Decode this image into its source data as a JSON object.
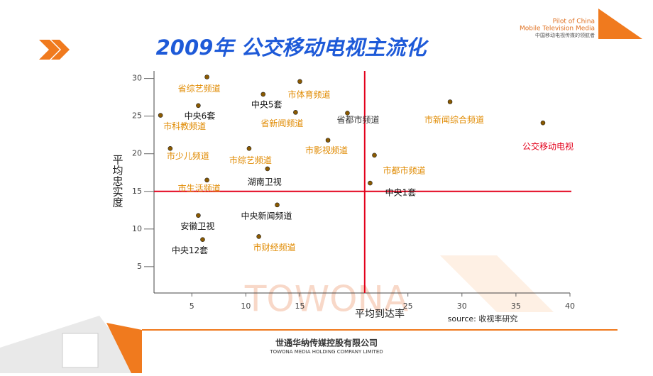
{
  "header": {
    "logo_line1": "Pilot of China",
    "logo_line2": "Mobile Television Media",
    "logo_line3": "中国移动电视传媒的领航者"
  },
  "footer": {
    "company_cn": "世通华纳传媒控股有限公司",
    "company_en": "TOWONA MEDIA HOLDING COMPANY LIMITED",
    "watermark": "TOWONA"
  },
  "chart_data": {
    "type": "scatter",
    "title": "2009年  公交移动电视主流化",
    "x_label": "平均到达率",
    "y_label": "平均忠实度",
    "source": "source:  收视率研究",
    "xlim": [
      1.5,
      40
    ],
    "ylim": [
      1.5,
      31
    ],
    "xticks": [
      5,
      10,
      15,
      25,
      30,
      35,
      40
    ],
    "yticks": [
      5,
      10,
      15,
      20,
      25,
      30
    ],
    "crosshair": {
      "x": 21,
      "y": 15,
      "color": "#e3001b"
    },
    "point_color": "#8b5a00",
    "points": [
      {
        "label": "省综艺频道",
        "x": 6.4,
        "y": 30.2,
        "color": "#e08a00"
      },
      {
        "label": "市体育频道",
        "x": 15.0,
        "y": 29.6,
        "color": "#e08a00"
      },
      {
        "label": "中央5套",
        "x": 11.6,
        "y": 27.9,
        "color": "#111111"
      },
      {
        "label": "中央6套",
        "x": 5.6,
        "y": 26.4,
        "color": "#111111"
      },
      {
        "label": "市科教频道",
        "x": 2.1,
        "y": 25.1,
        "color": "#e08a00"
      },
      {
        "label": "省新闻频道",
        "x": 14.6,
        "y": 25.5,
        "color": "#e08a00"
      },
      {
        "label": "省都市频道",
        "x": 19.4,
        "y": 25.4,
        "color": "#333333"
      },
      {
        "label": "市新闻综合频道",
        "x": 28.9,
        "y": 26.9,
        "color": "#e08a00"
      },
      {
        "label": "公交移动电视",
        "x": 37.5,
        "y": 24.1,
        "color": "#e3001b"
      },
      {
        "label": "市少儿频道",
        "x": 3.0,
        "y": 20.7,
        "color": "#e08a00"
      },
      {
        "label": "市综艺频道",
        "x": 10.3,
        "y": 20.7,
        "color": "#e08a00"
      },
      {
        "label": "市影视频道",
        "x": 17.6,
        "y": 21.8,
        "color": "#e08a00"
      },
      {
        "label": "市都市频道",
        "x": 21.9,
        "y": 19.8,
        "color": "#e08a00"
      },
      {
        "label": "湖南卫视",
        "x": 12.0,
        "y": 18.0,
        "color": "#111111"
      },
      {
        "label": "市生活频道",
        "x": 6.4,
        "y": 16.5,
        "color": "#e08a00"
      },
      {
        "label": "中央1套",
        "x": 21.5,
        "y": 16.1,
        "color": "#111111"
      },
      {
        "label": "中央新闻频道",
        "x": 12.9,
        "y": 13.2,
        "color": "#111111"
      },
      {
        "label": "安徽卫视",
        "x": 5.6,
        "y": 11.8,
        "color": "#111111"
      },
      {
        "label": "中央12套",
        "x": 6.0,
        "y": 8.6,
        "color": "#111111"
      },
      {
        "label": "市财经频道",
        "x": 11.2,
        "y": 9.0,
        "color": "#e08a00"
      }
    ]
  }
}
